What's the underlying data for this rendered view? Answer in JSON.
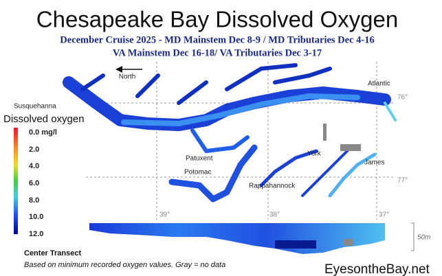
{
  "title": "Chesapeake Bay Dissolved Oxygen",
  "subtitle_lines": [
    "December Cruise 2025 - MD Mainstem Dec 8-9 / MD Tributaries Dec 4-16",
    "VA Mainstem Dec 16-18/  VA Tributaries Dec 3-17"
  ],
  "map": {
    "north": "North",
    "places": [
      "Susquehanna",
      "Atlantic",
      "Patuxent",
      "Potomac",
      "York",
      "James",
      "Rappahannock"
    ],
    "grid_labels": [
      "76°",
      "77°",
      "39°",
      "38°",
      "37°"
    ]
  },
  "legend": {
    "title": "Dissolved oxygen",
    "labels": [
      "0.0 mg/l",
      "2.0",
      "4.0",
      "6.0",
      "8.0",
      "10.0",
      "12.0"
    ]
  },
  "transect": {
    "title": "Center Transect",
    "scale": "50m"
  },
  "note": "Based on minimum recorded oxygen values. Gray = no data",
  "credit": "EyesontheBay.net"
}
